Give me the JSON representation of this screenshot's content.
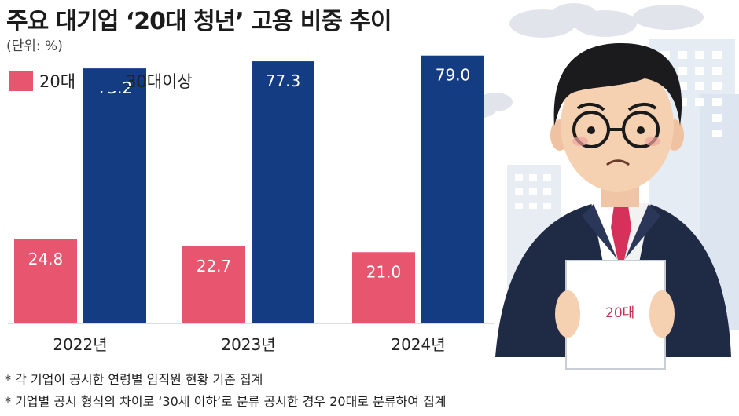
{
  "title": "주요 대기업 ‘20대 청년’ 고용 비중 추이",
  "unit": "(단위: %)",
  "colors": {
    "s20": "#e8556f",
    "s30": "#133c83",
    "grid": "#cfd3da"
  },
  "legend": [
    {
      "name": "20대",
      "color": "#e8556f"
    },
    {
      "name": "30대이상",
      "color": "#133c83"
    }
  ],
  "chart_data": {
    "type": "bar",
    "categories": [
      "2022년",
      "2023년",
      "2024년"
    ],
    "series": [
      {
        "name": "20대",
        "values": [
          24.8,
          22.7,
          21.0
        ]
      },
      {
        "name": "30대이상",
        "values": [
          75.2,
          77.3,
          79.0
        ]
      }
    ],
    "value_labels": [
      [
        "24.8",
        "22.7",
        "21.0"
      ],
      [
        "75.2",
        "77.3",
        "79.0"
      ]
    ],
    "ylim": [
      0,
      100
    ],
    "grid": false,
    "legend_position": "top-left"
  },
  "illustration": {
    "paper_text": "20대"
  },
  "notes": [
    "* 각 기업이 공시한 연령별 임직원 현황 기준 집계",
    "* 기업별 공시 형식의 차이로 ‘30세 이하’로 분류 공시한 경우 20대로 분류하여 집계"
  ]
}
